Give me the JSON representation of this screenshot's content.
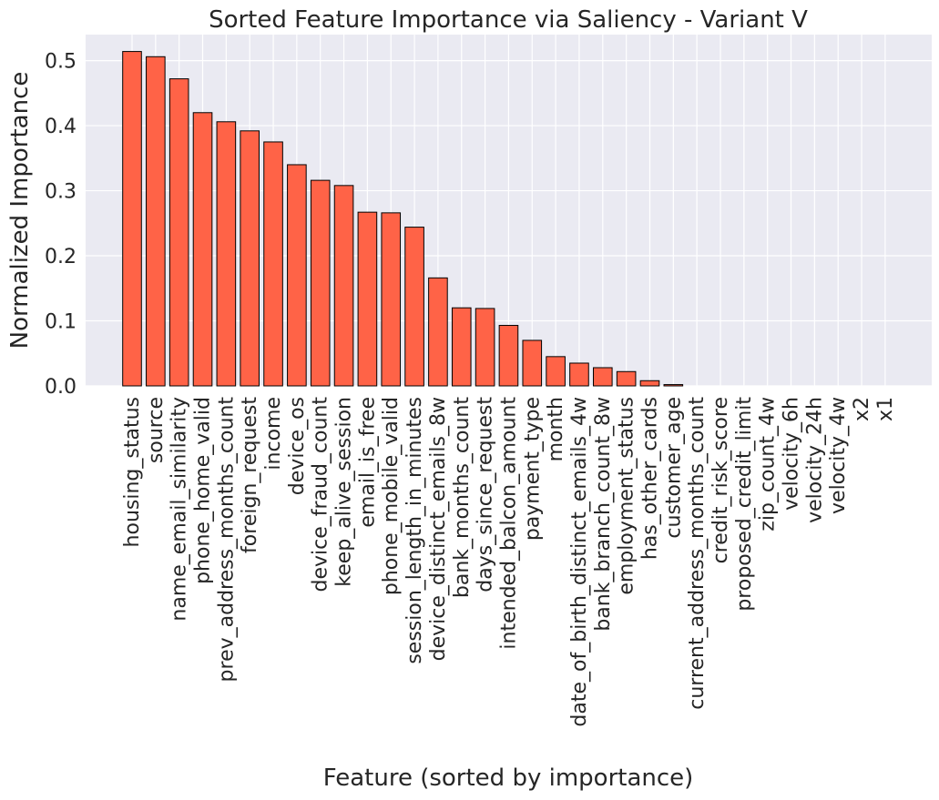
{
  "chart_data": {
    "type": "bar",
    "title": "Sorted Feature Importance via Saliency - Variant V",
    "xlabel": "Feature (sorted by importance)",
    "ylabel": "Normalized Importance",
    "ylim": [
      0,
      0.54
    ],
    "yticks": [
      0.0,
      0.1,
      0.2,
      0.3,
      0.4,
      0.5
    ],
    "ytick_labels": [
      "0.0",
      "0.1",
      "0.2",
      "0.3",
      "0.4",
      "0.5"
    ],
    "grid": true,
    "bar_color": "#ff6347",
    "bar_edge_color": "#000000",
    "plot_background": "#eaeaf2",
    "categories": [
      "housing_status",
      "source",
      "name_email_similarity",
      "phone_home_valid",
      "prev_address_months_count",
      "foreign_request",
      "income",
      "device_os",
      "device_fraud_count",
      "keep_alive_session",
      "email_is_free",
      "phone_mobile_valid",
      "session_length_in_minutes",
      "device_distinct_emails_8w",
      "bank_months_count",
      "days_since_request",
      "intended_balcon_amount",
      "payment_type",
      "month",
      "date_of_birth_distinct_emails_4w",
      "bank_branch_count_8w",
      "employment_status",
      "has_other_cards",
      "customer_age",
      "current_address_months_count",
      "credit_risk_score",
      "proposed_credit_limit",
      "zip_count_4w",
      "velocity_6h",
      "velocity_24h",
      "velocity_4w",
      "x2",
      "x1"
    ],
    "values": [
      0.514,
      0.506,
      0.472,
      0.42,
      0.406,
      0.392,
      0.375,
      0.34,
      0.316,
      0.308,
      0.267,
      0.266,
      0.244,
      0.166,
      0.12,
      0.119,
      0.093,
      0.07,
      0.045,
      0.035,
      0.028,
      0.022,
      0.008,
      0.002,
      0.0,
      0.0,
      0.0,
      0.0,
      0.0,
      0.0,
      0.0,
      0.0,
      0.0
    ]
  }
}
